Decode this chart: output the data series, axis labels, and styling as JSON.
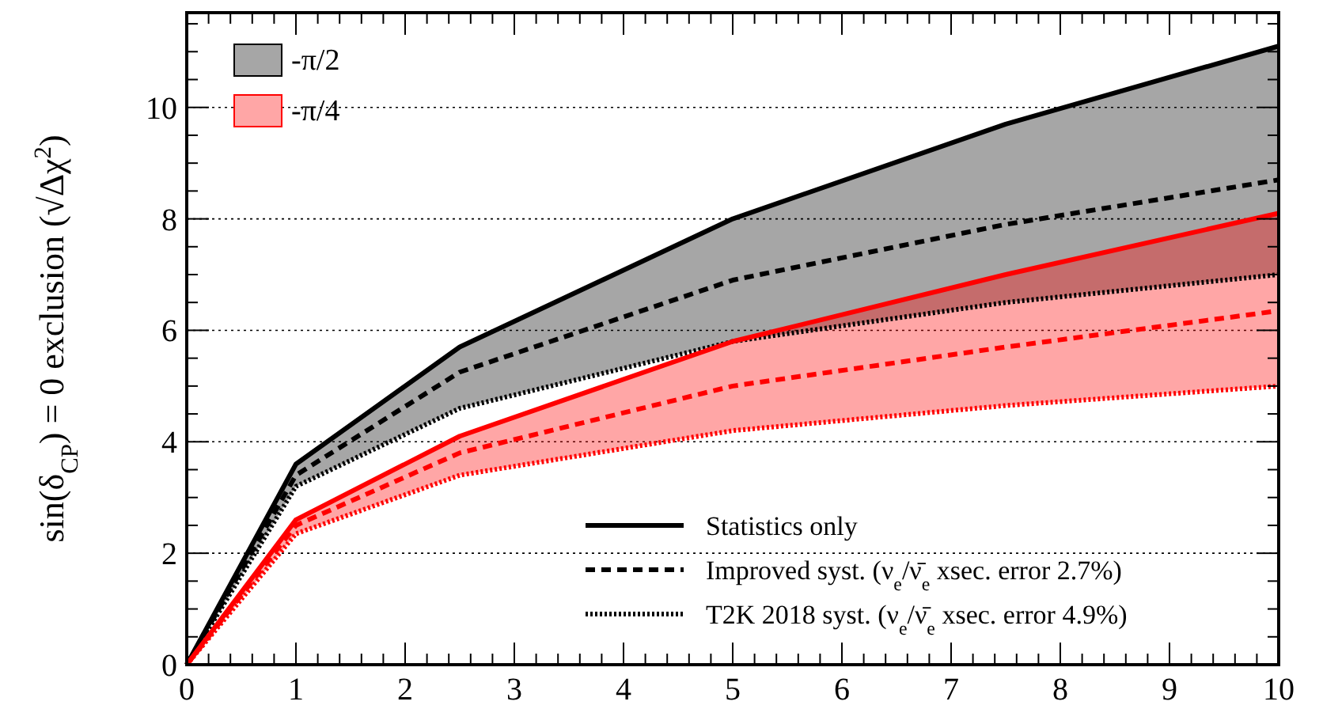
{
  "chart_data": {
    "type": "line",
    "ylabel": "sin(δ$_{CP}$) = 0 exclusion (√Δχ$^{2}$)",
    "xlim": [
      0,
      10
    ],
    "ylim": [
      0,
      11.7
    ],
    "xticks": [
      0,
      {
        "value": 0.2,
        "label": null
      },
      {
        "value": 0.4,
        "label": null
      },
      {
        "value": 0.6,
        "label": null
      },
      {
        "value": 0.8,
        "label": null
      },
      1,
      {
        "value": 1.2,
        "label": null
      },
      {
        "value": 1.4,
        "label": null
      },
      {
        "value": 1.6,
        "label": null
      },
      {
        "value": 1.8,
        "label": null
      },
      2,
      {
        "value": 2.2,
        "label": null
      },
      {
        "value": 2.4,
        "label": null
      },
      {
        "value": 2.6,
        "label": null
      },
      {
        "value": 2.8,
        "label": null
      },
      3,
      {
        "value": 3.2,
        "label": null
      },
      {
        "value": 3.4,
        "label": null
      },
      {
        "value": 3.6,
        "label": null
      },
      {
        "value": 3.8,
        "label": null
      },
      4,
      {
        "value": 4.2,
        "label": null
      },
      {
        "value": 4.4,
        "label": null
      },
      {
        "value": 4.6,
        "label": null
      },
      {
        "value": 4.8,
        "label": null
      },
      5,
      {
        "value": 5.2,
        "label": null
      },
      {
        "value": 5.4,
        "label": null
      },
      {
        "value": 5.6,
        "label": null
      },
      {
        "value": 5.8,
        "label": null
      },
      6,
      {
        "value": 6.2,
        "label": null
      },
      {
        "value": 6.4,
        "label": null
      },
      {
        "value": 6.6,
        "label": null
      },
      {
        "value": 6.8,
        "label": null
      },
      7,
      {
        "value": 7.2,
        "label": null
      },
      {
        "value": 7.4,
        "label": null
      },
      {
        "value": 7.6,
        "label": null
      },
      {
        "value": 7.8,
        "label": null
      },
      8,
      {
        "value": 8.2,
        "label": null
      },
      {
        "value": 8.4,
        "label": null
      },
      {
        "value": 8.6,
        "label": null
      },
      {
        "value": 8.8,
        "label": null
      },
      9,
      {
        "value": 9.2,
        "label": null
      },
      {
        "value": 9.4,
        "label": null
      },
      {
        "value": 9.6,
        "label": null
      },
      {
        "value": 9.8,
        "label": null
      },
      10
    ],
    "yticks": [
      0,
      {
        "value": 0.5,
        "label": null
      },
      {
        "value": 1,
        "label": null
      },
      {
        "value": 1.5,
        "label": null
      },
      2,
      {
        "value": 2.5,
        "label": null
      },
      {
        "value": 3,
        "label": null
      },
      {
        "value": 3.5,
        "label": null
      },
      4,
      {
        "value": 4.5,
        "label": null
      },
      {
        "value": 5,
        "label": null
      },
      {
        "value": 5.5,
        "label": null
      },
      6,
      {
        "value": 6.5,
        "label": null
      },
      {
        "value": 7,
        "label": null
      },
      {
        "value": 7.5,
        "label": null
      },
      8,
      {
        "value": 8.5,
        "label": null
      },
      {
        "value": 9,
        "label": null
      },
      {
        "value": 9.5,
        "label": null
      },
      10,
      {
        "value": 10.5,
        "label": null
      },
      {
        "value": 11,
        "label": null
      },
      {
        "value": 11.5,
        "label": null
      }
    ],
    "grid": "y",
    "legend": "bottom right",
    "annotations": [
      "-π/2",
      "-π/4"
    ],
    "x": [
      0,
      1,
      2.5,
      5,
      7.5,
      10
    ],
    "series": [
      {
        "name": "Statistics only",
        "color": "#000000",
        "line_style": "solid",
        "values": [
          0,
          3.6,
          5.7,
          8.0,
          9.7,
          11.1
        ]
      },
      {
        "name": "Improved syst. (ν$_{e}$/ν̄$_{e}$ xsec. error 2.7%)",
        "color": "#000000",
        "line_style": "dashed",
        "values": [
          0,
          3.4,
          5.25,
          6.9,
          7.9,
          8.7
        ],
        "lower": [
          0,
          3.2,
          4.6,
          5.8,
          6.5,
          7.0
        ],
        "upper": [
          0,
          3.6,
          5.7,
          8.0,
          9.7,
          11.1
        ]
      },
      {
        "name": "T2K 2018 syst. (ν$_{e}$/ν̄$_{e}$ xsec. error 4.9%)",
        "color": "#000000",
        "line_style": "dotted",
        "values": [
          0,
          3.2,
          4.6,
          5.8,
          6.5,
          7.0
        ]
      },
      {
        "color": "#ff0000",
        "line_style": "solid",
        "values": [
          0,
          2.6,
          4.1,
          5.8,
          7.0,
          8.1
        ]
      },
      {
        "color": "#ff0000",
        "line_style": "dashed",
        "values": [
          0,
          2.5,
          3.8,
          5.0,
          5.7,
          6.35
        ],
        "lower": [
          0,
          2.35,
          3.4,
          4.2,
          4.65,
          5.0
        ],
        "upper": [
          0,
          2.6,
          4.1,
          5.8,
          7.0,
          8.1
        ]
      },
      {
        "color": "#ff0000",
        "line_style": "dotted",
        "values": [
          0,
          2.35,
          3.4,
          4.2,
          4.65,
          5.0
        ]
      }
    ]
  }
}
